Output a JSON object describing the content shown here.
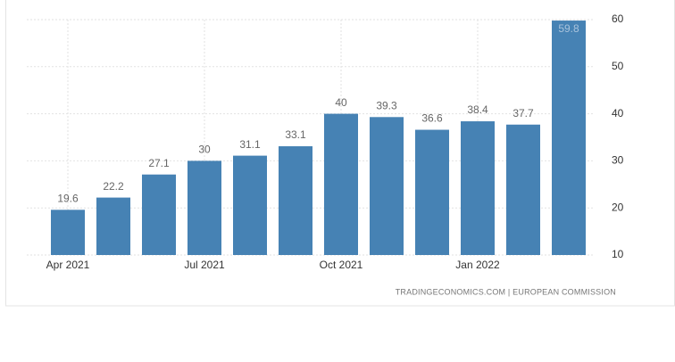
{
  "chart_data": {
    "type": "bar",
    "categories": [
      "Apr 2021",
      null,
      null,
      "Jul 2021",
      null,
      null,
      "Oct 2021",
      null,
      null,
      "Jan 2022",
      null,
      null
    ],
    "values": [
      19.6,
      22.2,
      27.1,
      30,
      31.1,
      33.1,
      40,
      39.3,
      36.6,
      38.4,
      37.7,
      59.8
    ],
    "color": "#4682b4",
    "ylim": [
      10,
      60
    ],
    "yticks": [
      10,
      20,
      30,
      40,
      50,
      60
    ],
    "grid": true,
    "source": "TRADINGECONOMICS.COM | EUROPEAN COMMISSION"
  }
}
